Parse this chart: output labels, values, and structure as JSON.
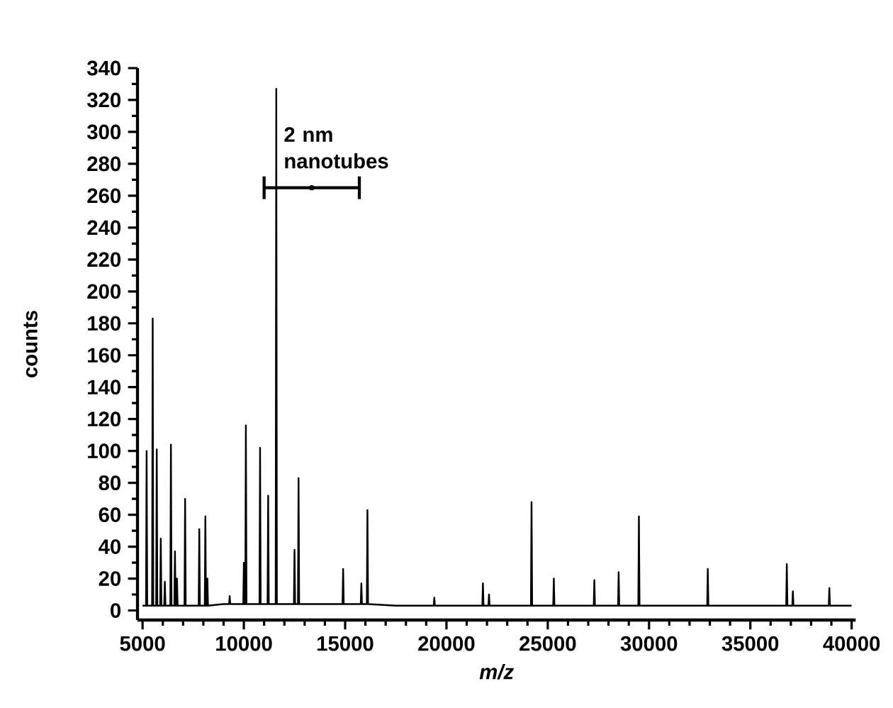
{
  "chart_data": {
    "type": "line",
    "xlabel": "*m/z*",
    "ylabel": "counts",
    "series": [
      {
        "color": "#000000",
        "x": [
          5000,
          5170,
          5200,
          5230,
          5470,
          5500,
          5530,
          5670,
          5700,
          5730,
          5870,
          5900,
          5930,
          6070,
          6100,
          6130,
          6370,
          6400,
          6430,
          6570,
          6600,
          6630,
          6670,
          6700,
          6730,
          7070,
          7100,
          7130,
          7770,
          7800,
          7830,
          8070,
          8100,
          8130,
          8170,
          8200,
          8230,
          9000,
          9270,
          9300,
          9330,
          9970,
          10000,
          10030,
          10070,
          10100,
          10130,
          10770,
          10800,
          10830,
          11170,
          11200,
          11230,
          11570,
          11600,
          11630,
          12470,
          12500,
          12530,
          12670,
          12700,
          12730,
          13500,
          14870,
          14900,
          14930,
          15770,
          15800,
          15830,
          16070,
          16100,
          16130,
          17500,
          19370,
          19400,
          19430,
          21000,
          21770,
          21800,
          21830,
          22070,
          22100,
          22130,
          23000,
          24170,
          24200,
          24230,
          25270,
          25300,
          25330,
          26500,
          27270,
          27300,
          27330,
          28470,
          28500,
          28530,
          29470,
          29500,
          29530,
          31000,
          32870,
          32900,
          32930,
          35000,
          36770,
          36800,
          36830,
          37070,
          37100,
          37130,
          38870,
          38900,
          38930,
          40000
        ],
        "values": [
          3,
          3,
          100,
          3,
          3,
          183,
          3,
          3,
          101,
          3,
          3,
          45,
          3,
          3,
          18,
          3,
          3,
          104,
          3,
          3,
          37,
          3,
          3,
          20,
          3,
          3,
          70,
          3,
          3,
          51,
          3,
          3,
          59,
          3,
          3,
          20,
          3,
          4,
          4,
          9,
          4,
          4,
          30,
          4,
          4,
          116,
          4,
          4,
          102,
          4,
          4,
          72,
          4,
          4,
          327,
          4,
          4,
          38,
          4,
          4,
          83,
          4,
          4,
          4,
          26,
          4,
          4,
          17,
          4,
          4,
          63,
          4,
          3,
          3,
          8,
          3,
          3,
          3,
          17,
          3,
          3,
          10,
          3,
          3,
          3,
          68,
          3,
          3,
          20,
          3,
          3,
          3,
          19,
          3,
          3,
          24,
          3,
          3,
          59,
          3,
          3,
          3,
          26,
          3,
          3,
          3,
          29,
          3,
          3,
          12,
          3,
          3,
          14,
          3,
          3
        ]
      },
      {
        "type": "scatter",
        "color": "#000000",
        "marker": "circle",
        "x": [
          13350
        ],
        "values": [
          265
        ],
        "xerrors": [
          [
            11000,
            15700
          ]
        ]
      }
    ],
    "xlim": [
      4750,
      40200
    ],
    "ylim": [
      -6,
      340
    ],
    "xticks": [
      5000,
      10000,
      15000,
      20000,
      25000,
      30000,
      35000,
      40000
    ],
    "yticks": [
      0,
      20,
      40,
      60,
      80,
      100,
      120,
      140,
      160,
      180,
      200,
      220,
      240,
      260,
      280,
      300,
      320,
      340
    ],
    "annotations": [
      {
        "text": "2 nm nanotubes",
        "x": 13350,
        "y": 265
      }
    ],
    "grid": false,
    "legend": false,
    "marker": "none",
    "line_style": "solid"
  }
}
